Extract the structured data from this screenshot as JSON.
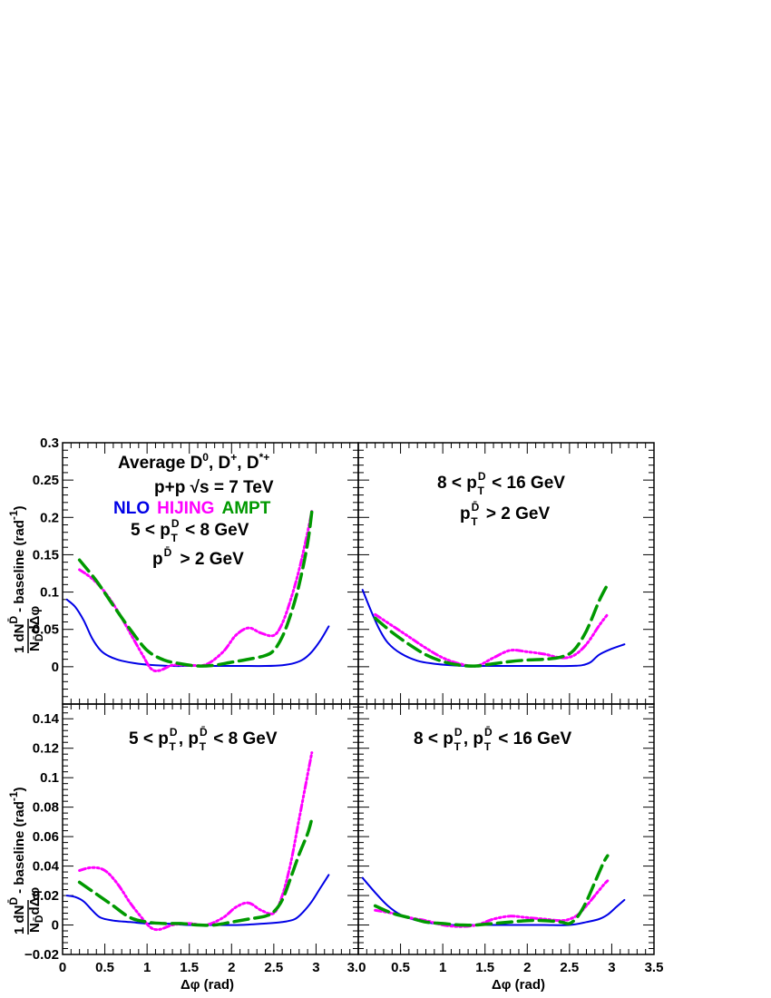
{
  "colors": {
    "NLO": "#0000e6",
    "HIJING": "#ff00ff",
    "AMPT": "#009900"
  },
  "legend": {
    "entries": [
      {
        "name": "NLO",
        "color": "#0000e6"
      },
      {
        "name": "HIJING",
        "color": "#ff00ff"
      },
      {
        "name": "AMPT",
        "color": "#009900"
      }
    ]
  },
  "labels": {
    "x_title": "Δφ (rad)",
    "y_main": "1 dN",
    "y_main_sup": "D̄",
    "y_denom": "N",
    "y_denom_sub": "D̄",
    "y_denom_rest": "dΔφ",
    "y_suffix": "- baseline (rad",
    "y_suffix_sup": "-1",
    "y_suffix_end": ")",
    "title_line1": "Average D",
    "title_line1_sup0": "0",
    "title_line1_mid": ", D",
    "title_line1_sup1": "+",
    "title_line1_mid2": ", D",
    "title_line1_sup2": "*+",
    "system": "p+p  √s = 7 TeV"
  },
  "chart_data": [
    {
      "type": "line",
      "panel": "top-left",
      "annotation": [
        "5 < p_T^D < 8 GeV",
        "p^D̄ > 2 GeV"
      ],
      "xlim": [
        0,
        3.5
      ],
      "ylim": [
        -0.05,
        0.3
      ],
      "yticks": [
        0,
        0.05,
        0.1,
        0.15,
        0.2,
        0.25,
        0.3
      ],
      "ytick_labels": [
        "0",
        "0.05",
        "0.1",
        "0.15",
        "0.2",
        "0.25",
        "0.3"
      ],
      "series": [
        {
          "name": "NLO",
          "x": [
            0.05,
            0.15,
            0.25,
            0.35,
            0.45,
            0.55,
            0.7,
            0.9,
            1.1,
            1.3,
            1.5,
            1.8,
            2.1,
            2.4,
            2.6,
            2.75,
            2.85,
            2.95,
            3.05,
            3.15
          ],
          "y": [
            0.09,
            0.08,
            0.062,
            0.038,
            0.022,
            0.014,
            0.008,
            0.004,
            0.002,
            0.001,
            0.001,
            0.001,
            0.001,
            0.001,
            0.002,
            0.005,
            0.01,
            0.02,
            0.035,
            0.054
          ]
        },
        {
          "name": "HIJING",
          "x": [
            0.2,
            0.35,
            0.5,
            0.65,
            0.8,
            0.95,
            1.05,
            1.15,
            1.3,
            1.5,
            1.7,
            1.9,
            2.05,
            2.2,
            2.35,
            2.5,
            2.6,
            2.7,
            2.8,
            2.9,
            2.95
          ],
          "y": [
            0.13,
            0.118,
            0.1,
            0.075,
            0.045,
            0.015,
            -0.003,
            -0.005,
            0.002,
            0.002,
            0.003,
            0.02,
            0.042,
            0.052,
            0.045,
            0.042,
            0.058,
            0.09,
            0.13,
            0.18,
            0.208
          ]
        },
        {
          "name": "AMPT",
          "x": [
            0.2,
            0.4,
            0.6,
            0.8,
            1.0,
            1.2,
            1.4,
            1.6,
            1.8,
            2.0,
            2.2,
            2.4,
            2.5,
            2.6,
            2.7,
            2.8,
            2.9,
            2.95
          ],
          "y": [
            0.143,
            0.115,
            0.082,
            0.05,
            0.022,
            0.009,
            0.004,
            0.001,
            0.002,
            0.006,
            0.01,
            0.015,
            0.022,
            0.04,
            0.07,
            0.11,
            0.165,
            0.208
          ]
        }
      ]
    },
    {
      "type": "line",
      "panel": "top-right",
      "annotation": [
        "8 < p_T^D < 16 GeV",
        "p_T^D̄ > 2 GeV"
      ],
      "xlim": [
        0,
        3.5
      ],
      "ylim": [
        -0.05,
        0.3
      ],
      "series": [
        {
          "name": "NLO",
          "x": [
            0.05,
            0.15,
            0.25,
            0.35,
            0.5,
            0.7,
            0.9,
            1.1,
            1.3,
            1.6,
            1.9,
            2.2,
            2.5,
            2.65,
            2.75,
            2.85,
            3.0,
            3.15
          ],
          "y": [
            0.103,
            0.075,
            0.05,
            0.032,
            0.018,
            0.008,
            0.004,
            0.002,
            0.001,
            0.001,
            0.001,
            0.001,
            0.001,
            0.002,
            0.006,
            0.016,
            0.024,
            0.03
          ]
        },
        {
          "name": "HIJING",
          "x": [
            0.2,
            0.4,
            0.6,
            0.8,
            1.0,
            1.2,
            1.4,
            1.6,
            1.8,
            2.0,
            2.2,
            2.4,
            2.55,
            2.7,
            2.85,
            2.95
          ],
          "y": [
            0.07,
            0.055,
            0.04,
            0.025,
            0.012,
            0.004,
            0.001,
            0.012,
            0.022,
            0.02,
            0.017,
            0.012,
            0.015,
            0.03,
            0.055,
            0.07
          ]
        },
        {
          "name": "AMPT",
          "x": [
            0.2,
            0.4,
            0.6,
            0.8,
            1.0,
            1.2,
            1.4,
            1.6,
            1.8,
            2.0,
            2.2,
            2.4,
            2.55,
            2.7,
            2.85,
            2.95
          ],
          "y": [
            0.065,
            0.046,
            0.03,
            0.016,
            0.007,
            0.002,
            0.001,
            0.004,
            0.007,
            0.009,
            0.01,
            0.013,
            0.022,
            0.048,
            0.088,
            0.11
          ]
        }
      ]
    },
    {
      "type": "line",
      "panel": "bottom-left",
      "annotation": [
        "5 < p_T^D, p_T^D̄ < 8 GeV"
      ],
      "xlim": [
        0,
        3.5
      ],
      "ylim": [
        -0.02,
        0.15
      ],
      "xticks": [
        0,
        0.5,
        1,
        1.5,
        2,
        2.5,
        3
      ],
      "xtick_labels": [
        "0",
        "0.5",
        "1",
        "1.5",
        "2",
        "2.5",
        "3"
      ],
      "xtick_last_label": "3.0",
      "yticks": [
        -0.02,
        0,
        0.02,
        0.04,
        0.06,
        0.08,
        0.1,
        0.12,
        0.14
      ],
      "ytick_labels": [
        "−0.02",
        "0",
        "0.02",
        "0.04",
        "0.06",
        "0.08",
        "0.1",
        "0.12",
        "0.14"
      ],
      "series": [
        {
          "name": "NLO",
          "x": [
            0.05,
            0.15,
            0.25,
            0.35,
            0.45,
            0.6,
            0.8,
            1.0,
            1.2,
            1.5,
            1.8,
            2.1,
            2.4,
            2.6,
            2.75,
            2.85,
            2.95,
            3.05,
            3.15
          ],
          "y": [
            0.02,
            0.019,
            0.016,
            0.01,
            0.005,
            0.003,
            0.002,
            0.001,
            0.001,
            0.0,
            0.0,
            0.0,
            0.001,
            0.002,
            0.004,
            0.009,
            0.016,
            0.025,
            0.034
          ]
        },
        {
          "name": "HIJING",
          "x": [
            0.2,
            0.35,
            0.5,
            0.65,
            0.8,
            0.95,
            1.05,
            1.15,
            1.3,
            1.5,
            1.7,
            1.9,
            2.05,
            2.2,
            2.35,
            2.5,
            2.6,
            2.7,
            2.8,
            2.9,
            2.95
          ],
          "y": [
            0.037,
            0.039,
            0.037,
            0.028,
            0.015,
            0.004,
            -0.002,
            -0.003,
            0.0,
            0.001,
            0.0,
            0.005,
            0.012,
            0.015,
            0.01,
            0.008,
            0.02,
            0.042,
            0.072,
            0.102,
            0.117
          ]
        },
        {
          "name": "AMPT",
          "x": [
            0.2,
            0.4,
            0.6,
            0.8,
            1.0,
            1.2,
            1.4,
            1.6,
            1.8,
            2.0,
            2.2,
            2.4,
            2.5,
            2.6,
            2.7,
            2.8,
            2.9,
            2.95
          ],
          "y": [
            0.029,
            0.021,
            0.013,
            0.005,
            0.002,
            0.001,
            0.001,
            0.0,
            0.0,
            0.002,
            0.004,
            0.006,
            0.009,
            0.017,
            0.032,
            0.048,
            0.062,
            0.072
          ]
        }
      ]
    },
    {
      "type": "line",
      "panel": "bottom-right",
      "annotation": [
        "8 < p_T^D, p_T^D̄ < 16 GeV"
      ],
      "xlim": [
        0,
        3.5
      ],
      "ylim": [
        -0.02,
        0.15
      ],
      "xticks": [
        0.5,
        1,
        1.5,
        2,
        2.5,
        3,
        3.5
      ],
      "xtick_labels": [
        "0.5",
        "1",
        "1.5",
        "2",
        "2.5",
        "3",
        "3.5"
      ],
      "series": [
        {
          "name": "NLO",
          "x": [
            0.05,
            0.2,
            0.35,
            0.5,
            0.7,
            0.9,
            1.1,
            1.3,
            1.6,
            1.9,
            2.2,
            2.5,
            2.7,
            2.85,
            2.95,
            3.05,
            3.15
          ],
          "y": [
            0.032,
            0.022,
            0.013,
            0.007,
            0.003,
            0.001,
            0.0,
            0.0,
            0.0,
            0.0,
            0.0,
            0.0,
            0.002,
            0.004,
            0.007,
            0.012,
            0.017
          ]
        },
        {
          "name": "HIJING",
          "x": [
            0.2,
            0.4,
            0.6,
            0.8,
            1.0,
            1.2,
            1.4,
            1.6,
            1.8,
            2.0,
            2.2,
            2.4,
            2.5,
            2.6,
            2.7,
            2.8,
            2.9,
            2.95
          ],
          "y": [
            0.01,
            0.008,
            0.005,
            0.003,
            0.0,
            -0.001,
            0.0,
            0.004,
            0.006,
            0.005,
            0.004,
            0.003,
            0.004,
            0.007,
            0.013,
            0.02,
            0.027,
            0.03
          ]
        },
        {
          "name": "AMPT",
          "x": [
            0.2,
            0.4,
            0.6,
            0.8,
            1.0,
            1.2,
            1.4,
            1.6,
            1.8,
            2.0,
            2.2,
            2.4,
            2.5,
            2.6,
            2.7,
            2.8,
            2.9,
            2.95
          ],
          "y": [
            0.013,
            0.008,
            0.005,
            0.002,
            0.001,
            0.0,
            0.0,
            0.001,
            0.002,
            0.003,
            0.003,
            0.002,
            0.001,
            0.006,
            0.016,
            0.029,
            0.042,
            0.047
          ]
        }
      ]
    }
  ]
}
